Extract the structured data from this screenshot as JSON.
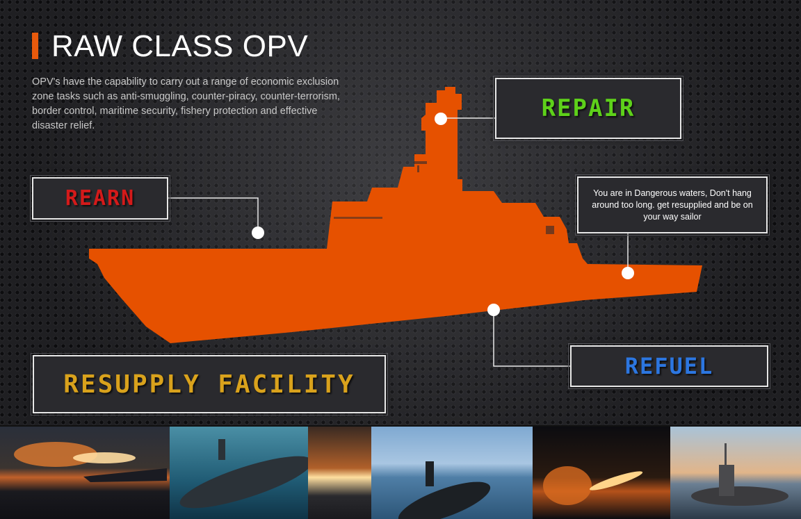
{
  "header": {
    "title": "RAW CLASS OPV",
    "description": "OPV's have the capability to carry out a range of economic exclusion zone tasks such as anti-smuggling, counter-piracy, counter-terrorism, border control, maritime security, fishery protection and effective disaster relief."
  },
  "labels": {
    "repair": "REPAIR",
    "rearn": "REARN",
    "refuel": "REFUEL",
    "resupply": "RESUPPLY FACILITY",
    "info": "You are in Dangerous waters, Don't hang around too long. get resupplied and be on your way sailor"
  },
  "colors": {
    "accent": "#e85a0c",
    "ship": "#e65100",
    "repair": "#5ed11a",
    "rearn": "#d41a1a",
    "refuel": "#2c76e0",
    "resupply": "#d9a21c"
  },
  "photos": [
    {
      "name": "missile-launch-photo"
    },
    {
      "name": "submarine-underwater-photo"
    },
    {
      "name": "ship-deck-launch-photo"
    },
    {
      "name": "submarine-surface-photo"
    },
    {
      "name": "night-missile-photo"
    },
    {
      "name": "submarine-sunset-photo"
    }
  ]
}
